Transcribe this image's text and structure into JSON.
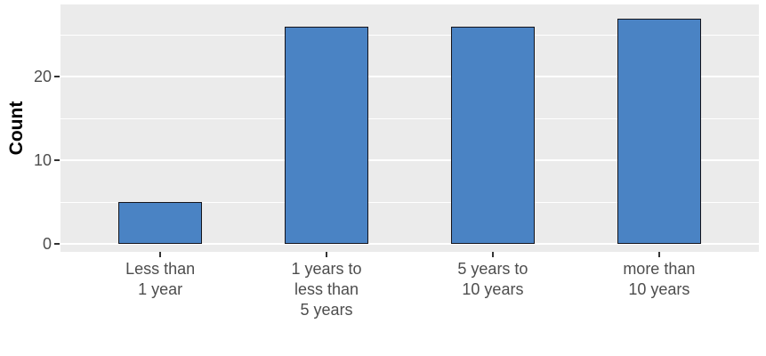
{
  "chart_data": {
    "type": "bar",
    "title": "",
    "categories": [
      "Less than\n1 year",
      "1 years to\nless than\n5 years",
      "5 years to\n10 years",
      "more than\n10 years"
    ],
    "values": [
      5,
      26,
      26,
      27
    ],
    "xlabel": "",
    "ylabel": "Count",
    "yticks": [
      0,
      10,
      20
    ],
    "grid_minor": [
      5,
      15,
      25
    ],
    "ylim": [
      -0.96,
      28.69
    ],
    "grid": "on",
    "legend": "none",
    "colors": {
      "panel_bg": "#ebebeb",
      "gridline": "#ffffff",
      "bar_fill": "#4a83c4",
      "bar_border": "#14141c",
      "tick_label": "#4d4d4d",
      "tick_mark": "#333333",
      "axis_title": "#000000",
      "figure_bg": "#ffffff"
    }
  }
}
